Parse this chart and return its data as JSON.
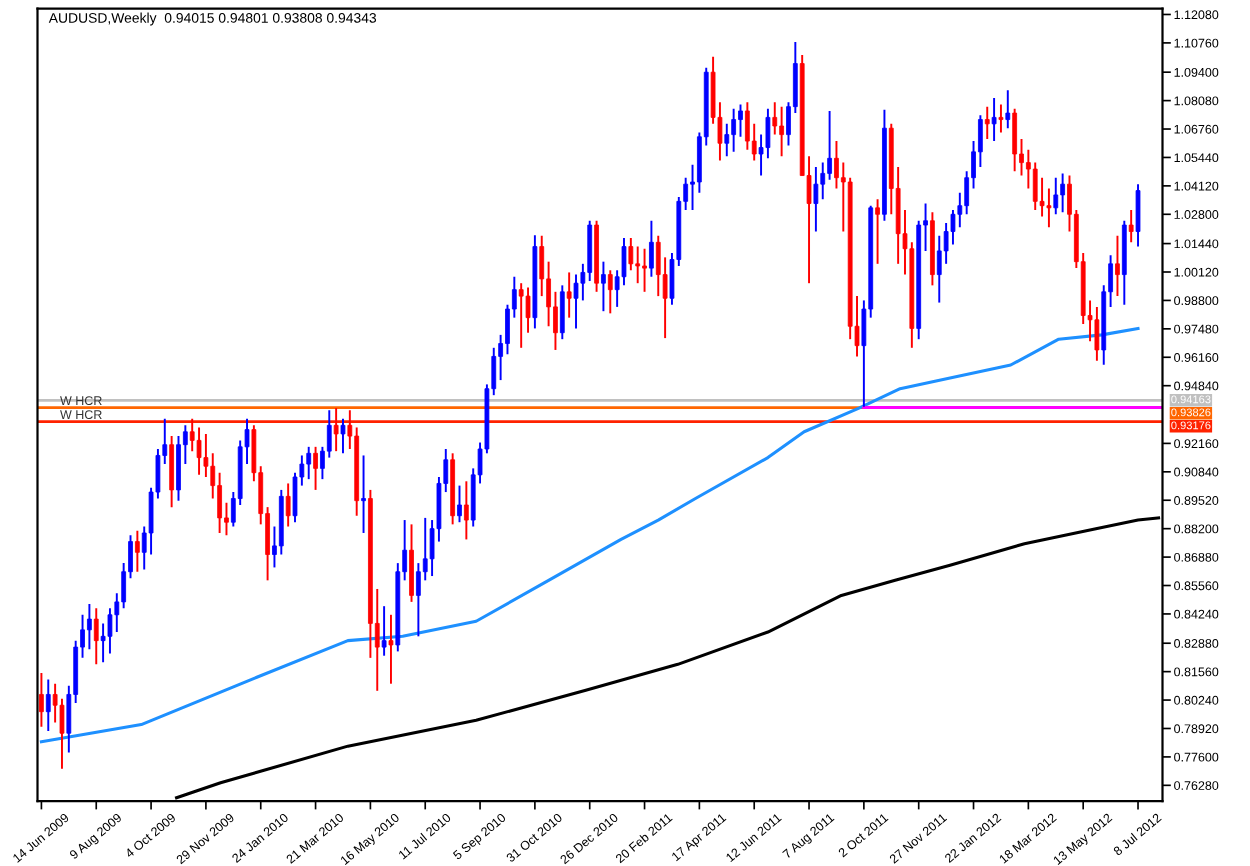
{
  "chart_data": {
    "type": "candlestick",
    "title": "AUDUSD,Weekly  0.94015 0.94801 0.93808 0.94343",
    "x": [
      "2009-06-14",
      "2009-06-21",
      "2009-06-28",
      "2009-07-05",
      "2009-07-12",
      "2009-07-19",
      "2009-07-26",
      "2009-08-02",
      "2009-08-09",
      "2009-08-16",
      "2009-08-23",
      "2009-08-30",
      "2009-09-06",
      "2009-09-13",
      "2009-09-20",
      "2009-09-27",
      "2009-10-04",
      "2009-10-11",
      "2009-10-18",
      "2009-10-25",
      "2009-11-01",
      "2009-11-08",
      "2009-11-15",
      "2009-11-22",
      "2009-11-29",
      "2009-12-06",
      "2009-12-13",
      "2009-12-20",
      "2009-12-27",
      "2010-01-03",
      "2010-01-10",
      "2010-01-17",
      "2010-01-24",
      "2010-01-31",
      "2010-02-07",
      "2010-02-14",
      "2010-02-21",
      "2010-02-28",
      "2010-03-07",
      "2010-03-14",
      "2010-03-21",
      "2010-03-28",
      "2010-04-04",
      "2010-04-11",
      "2010-04-18",
      "2010-04-25",
      "2010-05-02",
      "2010-05-09",
      "2010-05-16",
      "2010-05-23",
      "2010-05-30",
      "2010-06-06",
      "2010-06-13",
      "2010-06-20",
      "2010-06-27",
      "2010-07-04",
      "2010-07-11",
      "2010-07-18",
      "2010-07-25",
      "2010-08-01",
      "2010-08-08",
      "2010-08-15",
      "2010-08-22",
      "2010-08-29",
      "2010-09-05",
      "2010-09-12",
      "2010-09-19",
      "2010-09-26",
      "2010-10-03",
      "2010-10-10",
      "2010-10-17",
      "2010-10-24",
      "2010-10-31",
      "2010-11-07",
      "2010-11-14",
      "2010-11-21",
      "2010-11-28",
      "2010-12-05",
      "2010-12-12",
      "2010-12-19",
      "2010-12-26",
      "2011-01-02",
      "2011-01-09",
      "2011-01-16",
      "2011-01-23",
      "2011-01-30",
      "2011-02-06",
      "2011-02-13",
      "2011-02-20",
      "2011-02-27",
      "2011-03-06",
      "2011-03-13",
      "2011-03-20",
      "2011-03-27",
      "2011-04-03",
      "2011-04-10",
      "2011-04-17",
      "2011-04-24",
      "2011-05-01",
      "2011-05-08",
      "2011-05-15",
      "2011-05-22",
      "2011-05-29",
      "2011-06-05",
      "2011-06-12",
      "2011-06-19",
      "2011-06-26",
      "2011-07-03",
      "2011-07-10",
      "2011-07-17",
      "2011-07-24",
      "2011-07-31",
      "2011-08-07",
      "2011-08-14",
      "2011-08-21",
      "2011-08-28",
      "2011-09-04",
      "2011-09-11",
      "2011-09-18",
      "2011-09-25",
      "2011-10-02",
      "2011-10-09",
      "2011-10-16",
      "2011-10-23",
      "2011-10-30",
      "2011-11-06",
      "2011-11-13",
      "2011-11-20",
      "2011-11-27",
      "2011-12-04",
      "2011-12-11",
      "2011-12-18",
      "2011-12-25",
      "2012-01-01",
      "2012-01-08",
      "2012-01-15",
      "2012-01-22",
      "2012-01-29",
      "2012-02-05",
      "2012-02-12",
      "2012-02-19",
      "2012-02-26",
      "2012-03-04",
      "2012-03-11",
      "2012-03-18",
      "2012-03-25",
      "2012-04-01",
      "2012-04-08",
      "2012-04-15",
      "2012-04-22",
      "2012-04-29",
      "2012-05-06",
      "2012-05-13",
      "2012-05-20",
      "2012-05-27",
      "2012-06-03",
      "2012-06-10",
      "2012-06-17",
      "2012-06-24",
      "2012-07-01",
      "2012-07-08"
    ],
    "ohlc": [
      [
        0.805,
        0.815,
        0.79,
        0.797
      ],
      [
        0.797,
        0.812,
        0.788,
        0.805
      ],
      [
        0.805,
        0.81,
        0.792,
        0.8
      ],
      [
        0.8,
        0.803,
        0.7705,
        0.787
      ],
      [
        0.787,
        0.809,
        0.778,
        0.805
      ],
      [
        0.805,
        0.83,
        0.801,
        0.827
      ],
      [
        0.827,
        0.842,
        0.822,
        0.835
      ],
      [
        0.835,
        0.847,
        0.826,
        0.84
      ],
      [
        0.84,
        0.845,
        0.819,
        0.83
      ],
      [
        0.83,
        0.838,
        0.82,
        0.832
      ],
      [
        0.832,
        0.845,
        0.824,
        0.842
      ],
      [
        0.842,
        0.852,
        0.834,
        0.848
      ],
      [
        0.848,
        0.866,
        0.845,
        0.862
      ],
      [
        0.862,
        0.879,
        0.859,
        0.876
      ],
      [
        0.876,
        0.881,
        0.862,
        0.871
      ],
      [
        0.871,
        0.883,
        0.863,
        0.88
      ],
      [
        0.88,
        0.901,
        0.87,
        0.899
      ],
      [
        0.899,
        0.919,
        0.896,
        0.916
      ],
      [
        0.916,
        0.933,
        0.912,
        0.921
      ],
      [
        0.921,
        0.925,
        0.892,
        0.9
      ],
      [
        0.9,
        0.925,
        0.895,
        0.921
      ],
      [
        0.921,
        0.93,
        0.912,
        0.927
      ],
      [
        0.927,
        0.933,
        0.918,
        0.923
      ],
      [
        0.923,
        0.929,
        0.907,
        0.915
      ],
      [
        0.915,
        0.926,
        0.906,
        0.911
      ],
      [
        0.911,
        0.917,
        0.896,
        0.902
      ],
      [
        0.902,
        0.908,
        0.88,
        0.887
      ],
      [
        0.887,
        0.894,
        0.879,
        0.885
      ],
      [
        0.885,
        0.899,
        0.883,
        0.896
      ],
      [
        0.896,
        0.923,
        0.893,
        0.92
      ],
      [
        0.92,
        0.933,
        0.912,
        0.928
      ],
      [
        0.928,
        0.93,
        0.904,
        0.908
      ],
      [
        0.908,
        0.911,
        0.884,
        0.889
      ],
      [
        0.889,
        0.892,
        0.858,
        0.87
      ],
      [
        0.87,
        0.883,
        0.864,
        0.874
      ],
      [
        0.874,
        0.9,
        0.87,
        0.897
      ],
      [
        0.897,
        0.903,
        0.883,
        0.888
      ],
      [
        0.888,
        0.908,
        0.885,
        0.906
      ],
      [
        0.906,
        0.916,
        0.902,
        0.912
      ],
      [
        0.912,
        0.92,
        0.905,
        0.917
      ],
      [
        0.917,
        0.92,
        0.9,
        0.91
      ],
      [
        0.91,
        0.92,
        0.905,
        0.918
      ],
      [
        0.918,
        0.937,
        0.915,
        0.93
      ],
      [
        0.93,
        0.938,
        0.918,
        0.926
      ],
      [
        0.926,
        0.933,
        0.917,
        0.93
      ],
      [
        0.93,
        0.937,
        0.919,
        0.925
      ],
      [
        0.925,
        0.929,
        0.888,
        0.895
      ],
      [
        0.895,
        0.916,
        0.88,
        0.896
      ],
      [
        0.896,
        0.9,
        0.822,
        0.838
      ],
      [
        0.838,
        0.854,
        0.8067,
        0.827
      ],
      [
        0.827,
        0.846,
        0.823,
        0.83
      ],
      [
        0.83,
        0.842,
        0.81,
        0.828
      ],
      [
        0.828,
        0.866,
        0.825,
        0.862
      ],
      [
        0.862,
        0.886,
        0.858,
        0.872
      ],
      [
        0.872,
        0.884,
        0.848,
        0.851
      ],
      [
        0.851,
        0.866,
        0.832,
        0.862
      ],
      [
        0.862,
        0.887,
        0.858,
        0.868
      ],
      [
        0.868,
        0.886,
        0.86,
        0.882
      ],
      [
        0.882,
        0.906,
        0.876,
        0.903
      ],
      [
        0.903,
        0.919,
        0.899,
        0.914
      ],
      [
        0.914,
        0.917,
        0.884,
        0.888
      ],
      [
        0.888,
        0.902,
        0.885,
        0.893
      ],
      [
        0.893,
        0.904,
        0.877,
        0.886
      ],
      [
        0.886,
        0.91,
        0.883,
        0.907
      ],
      [
        0.907,
        0.922,
        0.903,
        0.919
      ],
      [
        0.919,
        0.949,
        0.917,
        0.947
      ],
      [
        0.947,
        0.966,
        0.944,
        0.962
      ],
      [
        0.962,
        0.972,
        0.951,
        0.968
      ],
      [
        0.968,
        0.986,
        0.963,
        0.984
      ],
      [
        0.984,
        0.999,
        0.98,
        0.993
      ],
      [
        0.993,
        0.996,
        0.966,
        0.99
      ],
      [
        0.99,
        0.994,
        0.973,
        0.98
      ],
      [
        0.98,
        1.0183,
        0.975,
        1.013
      ],
      [
        1.013,
        1.018,
        0.99,
        0.998
      ],
      [
        0.998,
        1.006,
        0.976,
        0.985
      ],
      [
        0.985,
        0.992,
        0.965,
        0.973
      ],
      [
        0.973,
        0.995,
        0.97,
        0.992
      ],
      [
        0.992,
        1.001,
        0.98,
        0.989
      ],
      [
        0.989,
        1.0,
        0.975,
        0.996
      ],
      [
        0.996,
        1.005,
        0.988,
        1.001
      ],
      [
        1.001,
        1.025,
        0.997,
        1.023
      ],
      [
        1.023,
        1.025,
        0.992,
        0.996
      ],
      [
        0.996,
        1.006,
        0.983,
        1.0
      ],
      [
        1.0,
        1.002,
        0.982,
        0.993
      ],
      [
        0.993,
        1.002,
        0.985,
        0.999
      ],
      [
        0.999,
        1.017,
        0.995,
        1.013
      ],
      [
        1.013,
        1.017,
        1.002,
        1.005
      ],
      [
        1.005,
        1.013,
        0.996,
        1.004
      ],
      [
        1.004,
        1.012,
        0.992,
        1.003
      ],
      [
        1.003,
        1.025,
        0.999,
        1.015
      ],
      [
        1.015,
        1.018,
        0.99,
        1.0
      ],
      [
        1.0,
        1.008,
        0.9705,
        0.989
      ],
      [
        0.989,
        1.01,
        0.986,
        1.007
      ],
      [
        1.007,
        1.036,
        1.004,
        1.034
      ],
      [
        1.034,
        1.045,
        1.03,
        1.042
      ],
      [
        1.042,
        1.051,
        1.03,
        1.043
      ],
      [
        1.043,
        1.066,
        1.038,
        1.064
      ],
      [
        1.064,
        1.096,
        1.06,
        1.094
      ],
      [
        1.094,
        1.1012,
        1.07,
        1.073
      ],
      [
        1.073,
        1.08,
        1.053,
        1.061
      ],
      [
        1.061,
        1.07,
        1.055,
        1.065
      ],
      [
        1.065,
        1.077,
        1.057,
        1.072
      ],
      [
        1.072,
        1.079,
        1.064,
        1.076
      ],
      [
        1.076,
        1.08,
        1.058,
        1.062
      ],
      [
        1.062,
        1.07,
        1.053,
        1.056
      ],
      [
        1.056,
        1.065,
        1.046,
        1.059
      ],
      [
        1.059,
        1.077,
        1.054,
        1.073
      ],
      [
        1.073,
        1.08,
        1.065,
        1.069
      ],
      [
        1.069,
        1.078,
        1.055,
        1.065
      ],
      [
        1.065,
        1.08,
        1.06,
        1.078
      ],
      [
        1.078,
        1.108,
        1.075,
        1.098
      ],
      [
        1.098,
        1.102,
        1.046,
        1.046
      ],
      [
        1.046,
        1.055,
        0.996,
        1.033
      ],
      [
        1.033,
        1.05,
        1.02,
        1.042
      ],
      [
        1.042,
        1.052,
        1.035,
        1.047
      ],
      [
        1.047,
        1.076,
        1.044,
        1.054
      ],
      [
        1.054,
        1.062,
        1.04,
        1.045
      ],
      [
        1.045,
        1.052,
        1.02,
        1.043
      ],
      [
        1.043,
        1.045,
        0.97,
        0.976
      ],
      [
        0.976,
        0.99,
        0.962,
        0.967
      ],
      [
        0.967,
        0.988,
        0.9386,
        0.984
      ],
      [
        0.984,
        1.032,
        0.98,
        1.031
      ],
      [
        1.031,
        1.035,
        1.005,
        1.028
      ],
      [
        1.028,
        1.0765,
        1.025,
        1.068
      ],
      [
        1.068,
        1.07,
        1.028,
        1.04
      ],
      [
        1.04,
        1.05,
        1.005,
        1.019
      ],
      [
        1.019,
        1.03,
        1.0,
        1.012
      ],
      [
        1.012,
        1.015,
        0.966,
        0.975
      ],
      [
        0.975,
        1.025,
        0.97,
        1.023
      ],
      [
        1.023,
        1.033,
        1.011,
        1.025
      ],
      [
        1.025,
        1.029,
        0.995,
        1.0
      ],
      [
        1.0,
        1.018,
        0.987,
        1.011
      ],
      [
        1.011,
        1.024,
        1.005,
        1.02
      ],
      [
        1.02,
        1.03,
        1.014,
        1.028
      ],
      [
        1.028,
        1.038,
        1.022,
        1.032
      ],
      [
        1.032,
        1.048,
        1.028,
        1.045
      ],
      [
        1.045,
        1.062,
        1.04,
        1.057
      ],
      [
        1.057,
        1.074,
        1.05,
        1.072
      ],
      [
        1.072,
        1.078,
        1.063,
        1.07
      ],
      [
        1.07,
        1.082,
        1.062,
        1.073
      ],
      [
        1.073,
        1.079,
        1.066,
        1.072
      ],
      [
        1.072,
        1.0856,
        1.068,
        1.075
      ],
      [
        1.075,
        1.077,
        1.048,
        1.056
      ],
      [
        1.056,
        1.063,
        1.046,
        1.052
      ],
      [
        1.052,
        1.058,
        1.04,
        1.049
      ],
      [
        1.049,
        1.052,
        1.03,
        1.034
      ],
      [
        1.034,
        1.045,
        1.027,
        1.032
      ],
      [
        1.032,
        1.04,
        1.022,
        1.031
      ],
      [
        1.031,
        1.045,
        1.028,
        1.037
      ],
      [
        1.037,
        1.047,
        1.029,
        1.042
      ],
      [
        1.042,
        1.046,
        1.02,
        1.028
      ],
      [
        1.028,
        1.03,
        1.003,
        1.006
      ],
      [
        1.006,
        1.01,
        0.977,
        0.981
      ],
      [
        0.981,
        0.988,
        0.969,
        0.979
      ],
      [
        0.979,
        0.985,
        0.96,
        0.965
      ],
      [
        0.965,
        0.995,
        0.9581,
        0.992
      ],
      [
        0.992,
        1.009,
        0.985,
        1.005
      ],
      [
        1.005,
        1.018,
        0.99,
        1.0
      ],
      [
        1.0,
        1.025,
        0.986,
        1.023
      ],
      [
        1.023,
        1.03,
        1.015,
        1.02
      ],
      [
        1.02,
        1.042,
        1.013,
        1.039
      ]
    ],
    "colors": [
      "#ff0000",
      "#0000ff",
      "#ff0000",
      "#ff0000",
      "#0000ff",
      "#0000ff",
      "#0000ff",
      "#0000ff",
      "#ff0000",
      "#0000ff",
      "#0000ff",
      "#0000ff",
      "#0000ff",
      "#0000ff",
      "#ff0000",
      "#0000ff",
      "#0000ff",
      "#0000ff",
      "#0000ff",
      "#ff0000",
      "#0000ff",
      "#0000ff",
      "#ff0000",
      "#ff0000",
      "#ff0000",
      "#ff0000",
      "#ff0000",
      "#ff0000",
      "#0000ff",
      "#0000ff",
      "#0000ff",
      "#ff0000",
      "#ff0000",
      "#ff0000",
      "#0000ff",
      "#0000ff",
      "#ff0000",
      "#0000ff",
      "#0000ff",
      "#0000ff",
      "#ff0000",
      "#0000ff",
      "#0000ff",
      "#ff0000",
      "#0000ff",
      "#ff0000",
      "#ff0000",
      "#0000ff",
      "#ff0000",
      "#ff0000",
      "#0000ff",
      "#ff0000",
      "#0000ff",
      "#0000ff",
      "#ff0000",
      "#0000ff",
      "#0000ff",
      "#0000ff",
      "#0000ff",
      "#0000ff",
      "#ff0000",
      "#0000ff",
      "#ff0000",
      "#0000ff",
      "#0000ff",
      "#0000ff",
      "#0000ff",
      "#0000ff",
      "#0000ff",
      "#0000ff",
      "#ff0000",
      "#ff0000",
      "#0000ff",
      "#ff0000",
      "#ff0000",
      "#ff0000",
      "#0000ff",
      "#ff0000",
      "#0000ff",
      "#0000ff",
      "#0000ff",
      "#ff0000",
      "#0000ff",
      "#ff0000",
      "#0000ff",
      "#0000ff",
      "#ff0000",
      "#ff0000",
      "#ff0000",
      "#0000ff",
      "#ff0000",
      "#ff0000",
      "#0000ff",
      "#0000ff",
      "#0000ff",
      "#0000ff",
      "#0000ff",
      "#0000ff",
      "#ff0000",
      "#ff0000",
      "#0000ff",
      "#0000ff",
      "#0000ff",
      "#ff0000",
      "#ff0000",
      "#0000ff",
      "#0000ff",
      "#ff0000",
      "#ff0000",
      "#0000ff",
      "#0000ff",
      "#ff0000",
      "#ff0000",
      "#0000ff",
      "#0000ff",
      "#0000ff",
      "#ff0000",
      "#ff0000",
      "#ff0000",
      "#ff0000",
      "#0000ff",
      "#0000ff",
      "#ff0000",
      "#0000ff",
      "#ff0000",
      "#ff0000",
      "#ff0000",
      "#ff0000",
      "#0000ff",
      "#0000ff",
      "#ff0000",
      "#0000ff",
      "#0000ff",
      "#0000ff",
      "#0000ff",
      "#0000ff",
      "#0000ff",
      "#0000ff",
      "#ff0000",
      "#0000ff",
      "#ff0000",
      "#0000ff",
      "#ff0000",
      "#ff0000",
      "#ff0000",
      "#ff0000",
      "#ff0000",
      "#ff0000",
      "#0000ff",
      "#0000ff",
      "#ff0000",
      "#ff0000",
      "#ff0000",
      "#ff0000",
      "#ff0000",
      "#0000ff",
      "#0000ff",
      "#ff0000",
      "#0000ff",
      "#ff0000",
      "#0000ff"
    ],
    "series": [
      {
        "type": "line",
        "color": "#1e90ff",
        "x": [
          "2009-06-14",
          "2009-09-24",
          "2010-01-20",
          "2010-04-23",
          "2010-06-18",
          "2010-09-01",
          "2010-11-14",
          "2011-01-27",
          "2011-03-06",
          "2011-04-13",
          "2011-06-26",
          "2011-08-02",
          "2011-09-27",
          "2011-11-08",
          "2011-12-29",
          "2012-02-29",
          "2012-04-18",
          "2012-06-01",
          "2012-07-08"
        ],
        "values": [
          0.783,
          0.791,
          0.813,
          0.83,
          0.832,
          0.839,
          0.858,
          0.877,
          0.886,
          0.896,
          0.915,
          0.927,
          0.938,
          0.947,
          0.952,
          0.958,
          0.97,
          0.972,
          0.975
        ]
      },
      {
        "type": "line",
        "color": "#000000",
        "x": [
          "2009-10-30",
          "2009-12-14",
          "2010-04-23",
          "2010-09-01",
          "2010-12-22",
          "2011-03-26",
          "2011-06-26",
          "2011-09-09",
          "2011-11-03",
          "2011-12-29",
          "2012-03-14",
          "2012-05-26",
          "2012-07-08",
          "2012-07-29"
        ],
        "values": [
          0.757,
          0.764,
          0.781,
          0.793,
          0.807,
          0.819,
          0.834,
          0.851,
          0.858,
          0.865,
          0.875,
          0.882,
          0.886,
          0.887
        ]
      },
      {
        "type": "line",
        "color": "#ff00ff",
        "x": [
          "2011-10-02",
          "2012-08-02"
        ],
        "values": [
          0.93826,
          0.93826
        ]
      }
    ],
    "ref_lines": [
      {
        "axis": "y",
        "value": 0.94163,
        "label": null,
        "color": "#c0c0c0"
      },
      {
        "axis": "y",
        "value": 0.93826,
        "label": "W HCR",
        "color": "#ff6600"
      },
      {
        "axis": "y",
        "value": 0.93176,
        "label": "W HCR",
        "color": "#ff2200"
      }
    ],
    "annotations": [
      {
        "text": "0.94163",
        "x": "2012-08-02",
        "y": 0.94163
      },
      {
        "text": "0.93826",
        "x": "2012-08-02",
        "y": 0.93826
      },
      {
        "text": "0.93176",
        "x": "2012-08-02",
        "y": 0.93176
      }
    ],
    "xlim": [
      "2009-06-10",
      "2012-08-02"
    ],
    "ylim": [
      0.7555,
      1.1235
    ],
    "xticks": [
      {
        "value": "2009-06-14",
        "label": "14 Jun 2009"
      },
      {
        "value": "2009-08-09",
        "label": "9 Aug 2009"
      },
      {
        "value": "2009-10-04",
        "label": "4 Oct 2009"
      },
      {
        "value": "2009-11-29",
        "label": "29 Nov 2009"
      },
      {
        "value": "2010-01-24",
        "label": "24 Jan 2010"
      },
      {
        "value": "2010-03-21",
        "label": "21 Mar 2010"
      },
      {
        "value": "2010-05-16",
        "label": "16 May 2010"
      },
      {
        "value": "2010-07-11",
        "label": "11 Jul 2010"
      },
      {
        "value": "2010-09-05",
        "label": "5 Sep 2010"
      },
      {
        "value": "2010-10-31",
        "label": "31 Oct 2010"
      },
      {
        "value": "2010-12-26",
        "label": "26 Dec 2010"
      },
      {
        "value": "2011-02-20",
        "label": "20 Feb 2011"
      },
      {
        "value": "2011-04-17",
        "label": "17 Apr 2011"
      },
      {
        "value": "2011-06-12",
        "label": "12 Jun 2011"
      },
      {
        "value": "2011-08-07",
        "label": "7 Aug 2011"
      },
      {
        "value": "2011-10-02",
        "label": "2 Oct 2011"
      },
      {
        "value": "2011-11-27",
        "label": "27 Nov 2011"
      },
      {
        "value": "2012-01-22",
        "label": "22 Jan 2012"
      },
      {
        "value": "2012-03-18",
        "label": "18 Mar 2012"
      },
      {
        "value": "2012-05-13",
        "label": "13 May 2012"
      },
      {
        "value": "2012-07-08",
        "label": "8 Jul 2012"
      }
    ],
    "yticks": [
      {
        "value": 1.1208,
        "label": "1.12080"
      },
      {
        "value": 1.1076,
        "label": "1.10760"
      },
      {
        "value": 1.094,
        "label": "1.09400"
      },
      {
        "value": 1.0808,
        "label": "1.08080"
      },
      {
        "value": 1.0676,
        "label": "1.06760"
      },
      {
        "value": 1.0544,
        "label": "1.05440"
      },
      {
        "value": 1.0412,
        "label": "1.04120"
      },
      {
        "value": 1.028,
        "label": "1.02800"
      },
      {
        "value": 1.0144,
        "label": "1.01440"
      },
      {
        "value": 1.0012,
        "label": "1.00120"
      },
      {
        "value": 0.988,
        "label": "0.98800"
      },
      {
        "value": 0.9748,
        "label": "0.97480"
      },
      {
        "value": 0.9616,
        "label": "0.96160"
      },
      {
        "value": 0.9484,
        "label": "0.94840"
      },
      {
        "value": 0.9216,
        "label": "0.92160"
      },
      {
        "value": 0.9084,
        "label": "0.90840"
      },
      {
        "value": 0.8952,
        "label": "0.89520"
      },
      {
        "value": 0.882,
        "label": "0.88200"
      },
      {
        "value": 0.8688,
        "label": "0.86880"
      },
      {
        "value": 0.8556,
        "label": "0.85560"
      },
      {
        "value": 0.8424,
        "label": "0.84240"
      },
      {
        "value": 0.8288,
        "label": "0.82880"
      },
      {
        "value": 0.8156,
        "label": "0.81560"
      },
      {
        "value": 0.8024,
        "label": "0.80240"
      },
      {
        "value": 0.7892,
        "label": "0.78920"
      },
      {
        "value": 0.776,
        "label": "0.77600"
      },
      {
        "value": 0.7628,
        "label": "0.76280"
      }
    ]
  }
}
